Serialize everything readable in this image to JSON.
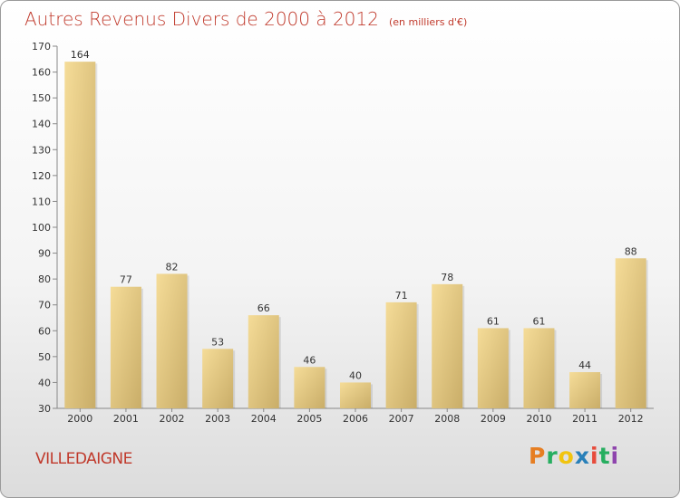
{
  "header": {
    "title": "Autres Revenus Divers de 2000 à 2012",
    "unit": "(en milliers d'€)"
  },
  "footer": {
    "commune": "VILLEDAIGNE",
    "logo_letters": [
      "P",
      "r",
      "o",
      "x",
      "i",
      "t",
      "i"
    ],
    "logo_colors": [
      "#e67e22",
      "#27ae60",
      "#f1c40f",
      "#2980b9",
      "#e74c3c",
      "#27ae60",
      "#8e44ad"
    ]
  },
  "chart_data": {
    "type": "bar",
    "categories": [
      "2000",
      "2001",
      "2002",
      "2003",
      "2004",
      "2005",
      "2006",
      "2007",
      "2008",
      "2009",
      "2010",
      "2011",
      "2012"
    ],
    "values": [
      164,
      77,
      82,
      53,
      66,
      46,
      40,
      71,
      78,
      61,
      61,
      44,
      88
    ],
    "title": "Autres Revenus Divers de 2000 à 2012",
    "ylim": [
      30,
      170
    ],
    "yticks": [
      30,
      40,
      50,
      60,
      70,
      80,
      90,
      100,
      110,
      120,
      130,
      140,
      150,
      160,
      170
    ],
    "grid": false,
    "colors": {
      "bar_light": "#f5dc98",
      "bar_dark": "#c9ad68",
      "axis": "#888888"
    }
  }
}
